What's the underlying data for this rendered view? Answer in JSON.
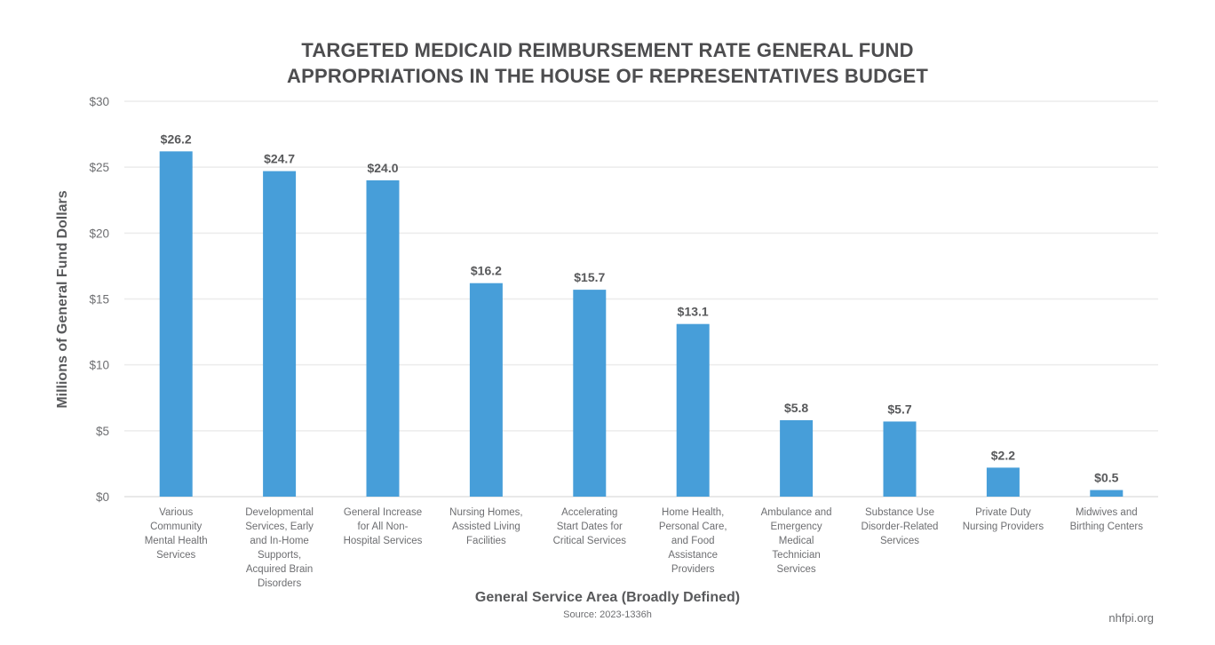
{
  "chart_data": {
    "type": "bar",
    "title": "TARGETED MEDICAID REIMBURSEMENT RATE GENERAL FUND APPROPRIATIONS IN THE HOUSE OF REPRESENTATIVES BUDGET",
    "title_lines": [
      "TARGETED MEDICAID REIMBURSEMENT RATE GENERAL FUND",
      "APPROPRIATIONS IN THE HOUSE OF REPRESENTATIVES BUDGET"
    ],
    "xlabel": "General Service Area (Broadly Defined)",
    "ylabel": "Millions of General Fund Dollars",
    "source": "Source: 2023-1336h",
    "brand": "nhfpi.org",
    "ylim": [
      0,
      30
    ],
    "yticks": [
      0,
      5,
      10,
      15,
      20,
      25,
      30
    ],
    "ytick_labels": [
      "$0",
      "$5",
      "$10",
      "$15",
      "$20",
      "$25",
      "$30"
    ],
    "grid": true,
    "bar_color": "#479ed9",
    "categories": [
      [
        "Various",
        "Community",
        "Mental Health",
        "Services"
      ],
      [
        "Developmental",
        "Services, Early",
        "and In-Home",
        "Supports,",
        "Acquired Brain",
        "Disorders"
      ],
      [
        "General Increase",
        "for All Non-",
        "Hospital Services"
      ],
      [
        "Nursing Homes,",
        "Assisted Living",
        "Facilities"
      ],
      [
        "Accelerating",
        "Start Dates for",
        "Critical Services"
      ],
      [
        "Home Health,",
        "Personal Care,",
        "and Food",
        "Assistance",
        "Providers"
      ],
      [
        "Ambulance and",
        "Emergency",
        "Medical",
        "Technician",
        "Services"
      ],
      [
        "Substance Use",
        "Disorder-Related",
        "Services"
      ],
      [
        "Private Duty",
        "Nursing Providers"
      ],
      [
        "Midwives and",
        "Birthing Centers"
      ]
    ],
    "values": [
      26.2,
      24.7,
      24.0,
      16.2,
      15.7,
      13.1,
      5.8,
      5.7,
      2.2,
      0.5
    ],
    "value_labels": [
      "$26.2",
      "$24.7",
      "$24.0",
      "$16.2",
      "$15.7",
      "$13.1",
      "$5.8",
      "$5.7",
      "$2.2",
      "$0.5"
    ]
  }
}
